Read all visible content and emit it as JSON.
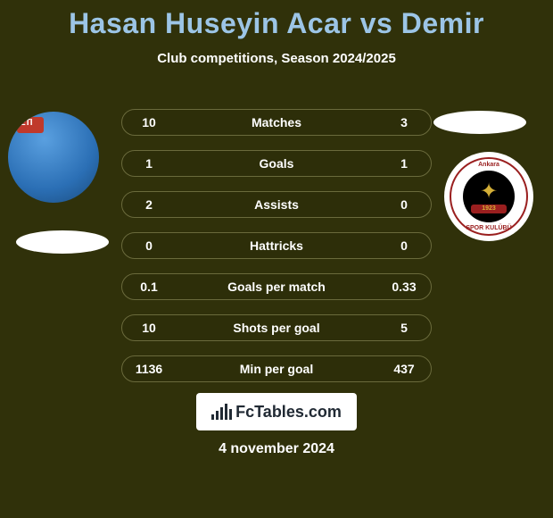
{
  "background_color": "#30310a",
  "title": {
    "text": "Hasan Huseyin Acar vs Demir",
    "color": "#9cc5e6",
    "fontsize": 32
  },
  "subtitle": {
    "text": "Club competitions, Season 2024/2025",
    "color": "#ffffff",
    "fontsize": 15
  },
  "date": "4 november 2024",
  "left_player": {
    "jersey_logo": "ETI",
    "jersey_color": "#2b6fb5"
  },
  "right_player": {
    "club_arc_top": "Ankara",
    "club_arc_bottom": "GENÇLERBİRLİĞİ SPOR KULÜBÜ",
    "year": "1923"
  },
  "stats": {
    "row_border_color": "#6a6a3c",
    "value_color": "#ffffff",
    "label_color": "#ffffff",
    "fontsize": 14,
    "rows": [
      {
        "left": "10",
        "label": "Matches",
        "right": "3"
      },
      {
        "left": "1",
        "label": "Goals",
        "right": "1"
      },
      {
        "left": "2",
        "label": "Assists",
        "right": "0"
      },
      {
        "left": "0",
        "label": "Hattricks",
        "right": "0"
      },
      {
        "left": "0.1",
        "label": "Goals per match",
        "right": "0.33"
      },
      {
        "left": "10",
        "label": "Shots per goal",
        "right": "5"
      },
      {
        "left": "1136",
        "label": "Min per goal",
        "right": "437"
      }
    ]
  },
  "footer": {
    "site": "FcTables.com",
    "background": "#ffffff",
    "text_color": "#212a34"
  }
}
